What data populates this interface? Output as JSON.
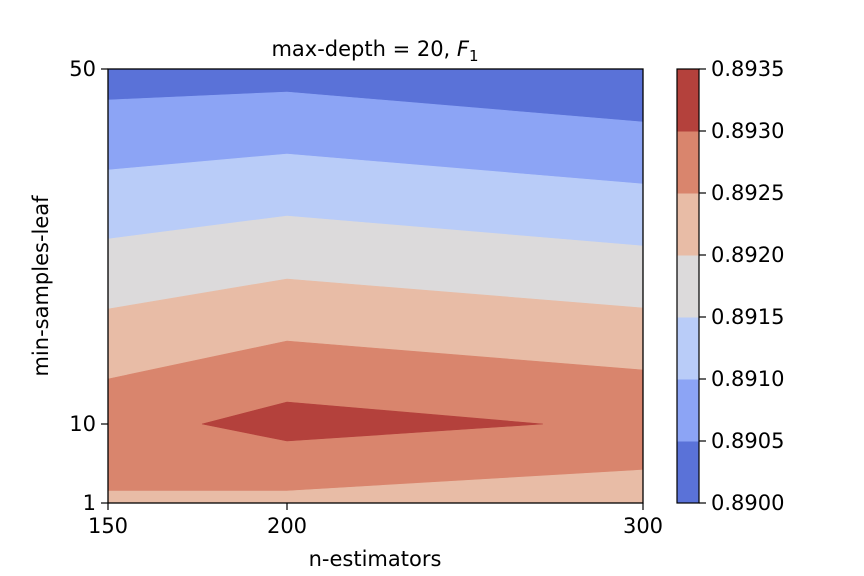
{
  "chart_data": {
    "type": "contour",
    "title": "max-depth = 20, ",
    "title_math": "F",
    "title_math_sub": "1",
    "xlabel": "n-estimators",
    "ylabel": "min-samples-leaf",
    "x_ticks": [
      150,
      200,
      300
    ],
    "y_ticks": [
      1,
      10,
      50
    ],
    "x_tick_labels": [
      "150",
      "200",
      "300"
    ],
    "y_tick_labels": [
      "1",
      "10",
      "50"
    ],
    "x_range": [
      150,
      300
    ],
    "y_range": [
      1,
      50
    ],
    "x_scale": "nonuniform (ticks equally spaced per categorical grid)",
    "y_scale": "nonuniform (ticks at grid levels)",
    "colormap": "coolwarm",
    "colorbar": {
      "levels": [
        0.89,
        0.8905,
        0.891,
        0.8915,
        0.892,
        0.8925,
        0.893,
        0.8935
      ],
      "tick_labels": [
        "0.8900",
        "0.8905",
        "0.8910",
        "0.8915",
        "0.8920",
        "0.8925",
        "0.8930",
        "0.8935"
      ],
      "band_colors": [
        "#5a72d8",
        "#8ca4f5",
        "#b9ccf8",
        "#dcdadb",
        "#e8bca6",
        "#d9856d",
        "#b4413c"
      ]
    },
    "grid": false,
    "legend": "colorbar right"
  }
}
